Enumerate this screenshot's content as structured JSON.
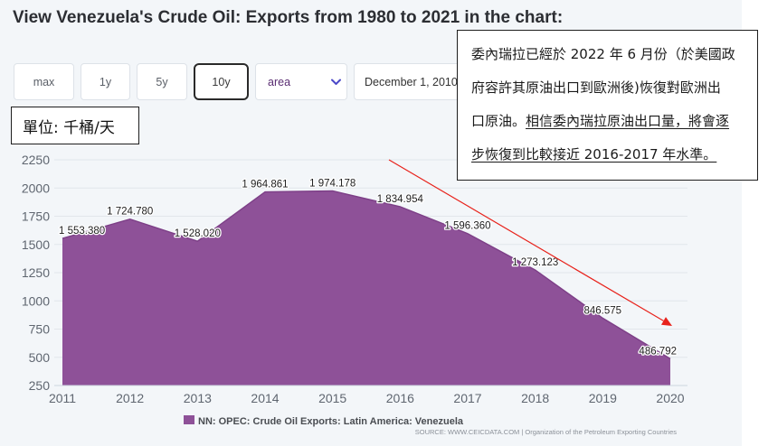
{
  "page": {
    "title": "View Venezuela's Crude Oil: Exports from 1980 to 2021 in the chart:"
  },
  "controls": {
    "range_buttons": [
      {
        "label": "max"
      },
      {
        "label": "1y"
      },
      {
        "label": "5y"
      },
      {
        "label": "10y",
        "selected": true
      }
    ],
    "chart_type_select": {
      "value": "area",
      "icon": "chevron-down-icon"
    },
    "start_date_field": {
      "value": "December 1, 2010"
    }
  },
  "annotation_box": {
    "lines": [
      {
        "plain": "委內瑞拉已經於 2022 年 6 月份（於美國政"
      },
      {
        "plain": "府容許其原油出口到歐洲後)恢復對歐洲出"
      },
      {
        "plain": "口原油。",
        "underlined": "相信委內瑞拉原油出口量，將會逐"
      },
      {
        "underlined": "步恢復到比較接近 2016-2017 年水準。"
      }
    ]
  },
  "unit_box": {
    "text": "單位: 千桶/天"
  },
  "colors": {
    "panel_background": "#f3f6f9",
    "series": "#8e5198",
    "series_edge": "#7d3f87",
    "selected_button_border": "#2a2a2a",
    "select_chevron": "#4b48c8",
    "arrow": "#e8221b"
  },
  "chart_data": {
    "type": "area",
    "x": [
      2011,
      2012,
      2013,
      2014,
      2015,
      2016,
      2017,
      2018,
      2019,
      2020
    ],
    "series": [
      {
        "name": "NN: OPEC: Crude Oil Exports: Latin America: Venezuela",
        "values": [
          1553.38,
          1724.78,
          1528.02,
          1964.861,
          1974.178,
          1834.954,
          1596.36,
          1273.123,
          846.575,
          486.792
        ]
      }
    ],
    "data_labels": [
      "1 553.380",
      "1 724.780",
      "1 528.020",
      "1 964.861",
      "1 974.178",
      "1 834.954",
      "1 596.360",
      "1 273.123",
      "846.575",
      "486.792"
    ],
    "y_ticks": [
      250,
      500,
      750,
      1000,
      1250,
      1500,
      1750,
      2000,
      2250
    ],
    "ylim": [
      250,
      2250
    ],
    "xlim": [
      2011,
      2020
    ],
    "grid": true,
    "legend_position": "bottom",
    "source": "SOURCE: WWW.CEICDATA.COM | Organization of the Petroleum Exporting Countries"
  }
}
